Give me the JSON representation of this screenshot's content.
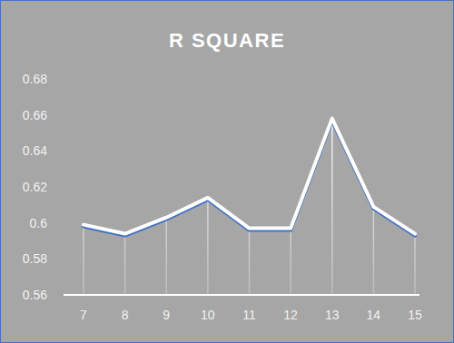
{
  "chart_data": {
    "type": "line",
    "title": "R SQUARE",
    "categories": [
      "7",
      "8",
      "9",
      "10",
      "11",
      "12",
      "13",
      "14",
      "15"
    ],
    "values": [
      0.599,
      0.594,
      0.603,
      0.614,
      0.597,
      0.597,
      0.658,
      0.609,
      0.594
    ],
    "color": "#ffffff",
    "ylim": [
      0.56,
      0.68
    ],
    "yticks": [
      0.56,
      0.58,
      0.6,
      0.62,
      0.64,
      0.66,
      0.68
    ],
    "grid": false
  }
}
